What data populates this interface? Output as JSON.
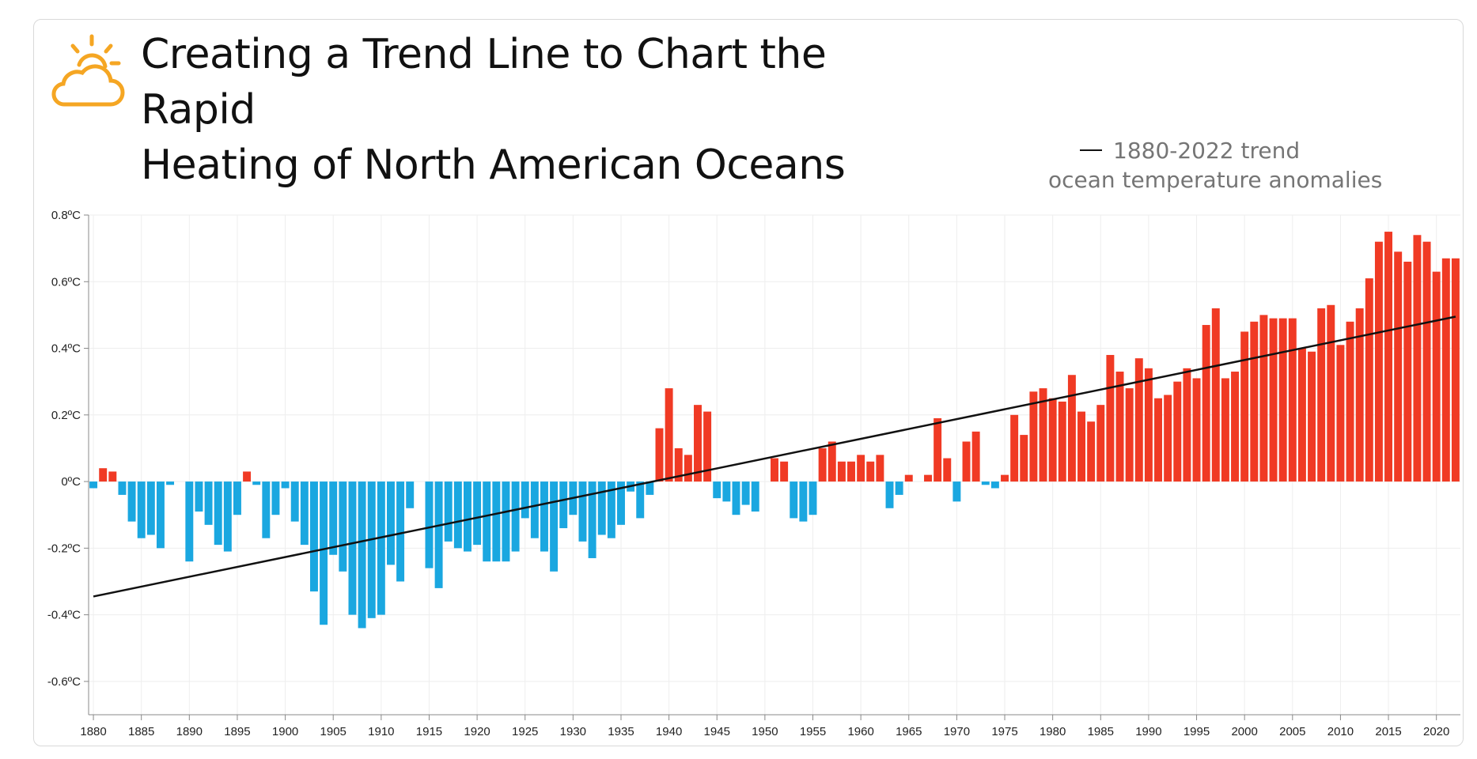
{
  "header": {
    "title_line1": "Creating a Trend Line to Chart the Rapid",
    "title_line2": "Heating of North American Oceans",
    "icon": "partly-sunny-cloud-icon"
  },
  "legend": {
    "trend_label": "1880-2022 trend",
    "bars_label": "ocean temperature anomalies"
  },
  "colors": {
    "positive": "#f03a24",
    "negative": "#1aa7e0",
    "trend": "#111111",
    "icon": "#f5a623",
    "grid": "#eeeeee"
  },
  "chart_data": {
    "type": "bar",
    "x_start": 1880,
    "x_end": 2022,
    "values": [
      -0.02,
      0.04,
      0.03,
      -0.04,
      -0.12,
      -0.17,
      -0.16,
      -0.2,
      -0.01,
      0.0,
      -0.24,
      -0.09,
      -0.13,
      -0.19,
      -0.21,
      -0.1,
      0.03,
      -0.01,
      -0.17,
      -0.1,
      -0.02,
      -0.12,
      -0.19,
      -0.33,
      -0.43,
      -0.22,
      -0.27,
      -0.4,
      -0.44,
      -0.41,
      -0.4,
      -0.25,
      -0.3,
      -0.08,
      0.0,
      -0.26,
      -0.32,
      -0.18,
      -0.2,
      -0.21,
      -0.19,
      -0.24,
      -0.24,
      -0.24,
      -0.21,
      -0.11,
      -0.17,
      -0.21,
      -0.27,
      -0.14,
      -0.1,
      -0.18,
      -0.23,
      -0.16,
      -0.17,
      -0.13,
      -0.03,
      -0.11,
      -0.04,
      0.16,
      0.28,
      0.1,
      0.08,
      0.23,
      0.21,
      -0.05,
      -0.06,
      -0.1,
      -0.07,
      -0.09,
      0.0,
      0.07,
      0.06,
      -0.11,
      -0.12,
      -0.1,
      0.1,
      0.12,
      0.06,
      0.06,
      0.08,
      0.06,
      0.08,
      -0.08,
      -0.04,
      0.02,
      0.0,
      0.02,
      0.19,
      0.07,
      -0.06,
      0.12,
      0.15,
      -0.01,
      -0.02,
      0.02,
      0.2,
      0.14,
      0.27,
      0.28,
      0.25,
      0.24,
      0.32,
      0.21,
      0.18,
      0.23,
      0.38,
      0.33,
      0.28,
      0.37,
      0.34,
      0.25,
      0.26,
      0.3,
      0.34,
      0.31,
      0.47,
      0.52,
      0.31,
      0.33,
      0.45,
      0.48,
      0.5,
      0.49,
      0.49,
      0.49,
      0.4,
      0.39,
      0.52,
      0.53,
      0.41,
      0.48,
      0.52,
      0.61,
      0.72,
      0.75,
      0.69,
      0.66,
      0.74,
      0.72,
      0.63,
      0.67,
      0.67
    ],
    "trend": {
      "start": [
        1880,
        -0.345
      ],
      "end": [
        2022,
        0.495
      ],
      "label": "1880-2022 trend"
    },
    "ylim": [
      -0.7,
      0.8
    ],
    "y_ticks": [
      -0.6,
      -0.4,
      -0.2,
      0.0,
      0.2,
      0.4,
      0.6,
      0.8
    ],
    "y_tick_labels": [
      "-0.6ºC",
      "-0.4ºC",
      "-0.2ºC",
      "0ºC",
      "0.2ºC",
      "0.4ºC",
      "0.6ºC",
      "0.8ºC"
    ],
    "x_ticks": [
      1880,
      1885,
      1890,
      1895,
      1900,
      1905,
      1910,
      1915,
      1920,
      1925,
      1930,
      1935,
      1940,
      1945,
      1950,
      1955,
      1960,
      1965,
      1970,
      1975,
      1980,
      1985,
      1990,
      1995,
      2000,
      2005,
      2010,
      2015,
      2020
    ],
    "grid": true,
    "legend_position": "top-right",
    "series_label": "ocean temperature anomalies"
  }
}
